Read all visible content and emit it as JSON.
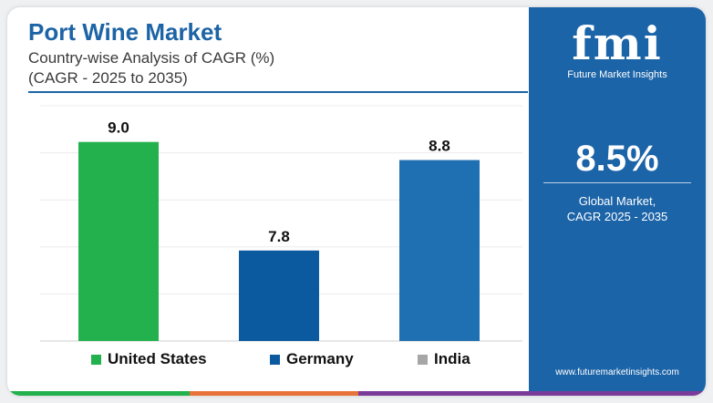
{
  "header": {
    "title": "Port Wine Market",
    "subtitle": "Country-wise Analysis of CAGR (%)",
    "subtitle2": "(CAGR - 2025 to 2035)"
  },
  "chart_data": {
    "type": "bar",
    "categories": [
      "United States",
      "Germany",
      "India"
    ],
    "values": [
      9.0,
      7.8,
      8.8
    ],
    "value_labels": [
      "9.0",
      "7.8",
      "8.8"
    ],
    "colors": [
      "#22b14c",
      "#0b5aa0",
      "#1f6fb3"
    ],
    "legend_colors": [
      "#22b14c",
      "#0b5aa0",
      "#a6a6a6"
    ],
    "title": "Port Wine Market",
    "xlabel": "",
    "ylabel": "",
    "ylim": [
      6.8,
      9.4
    ],
    "grid": true,
    "legend_position": "bottom"
  },
  "panel": {
    "logo": "fmi",
    "logo_subtitle": "Future Market Insights",
    "stat_value": "8.5%",
    "stat_label_line1": "Global Market,",
    "stat_label_line2": "CAGR 2025 - 2035",
    "website": "www.futuremarketinsights.com",
    "background": "#1c64a8"
  },
  "footer_colors": [
    "#22b14c",
    "#e8733a",
    "#7a3b9a"
  ]
}
